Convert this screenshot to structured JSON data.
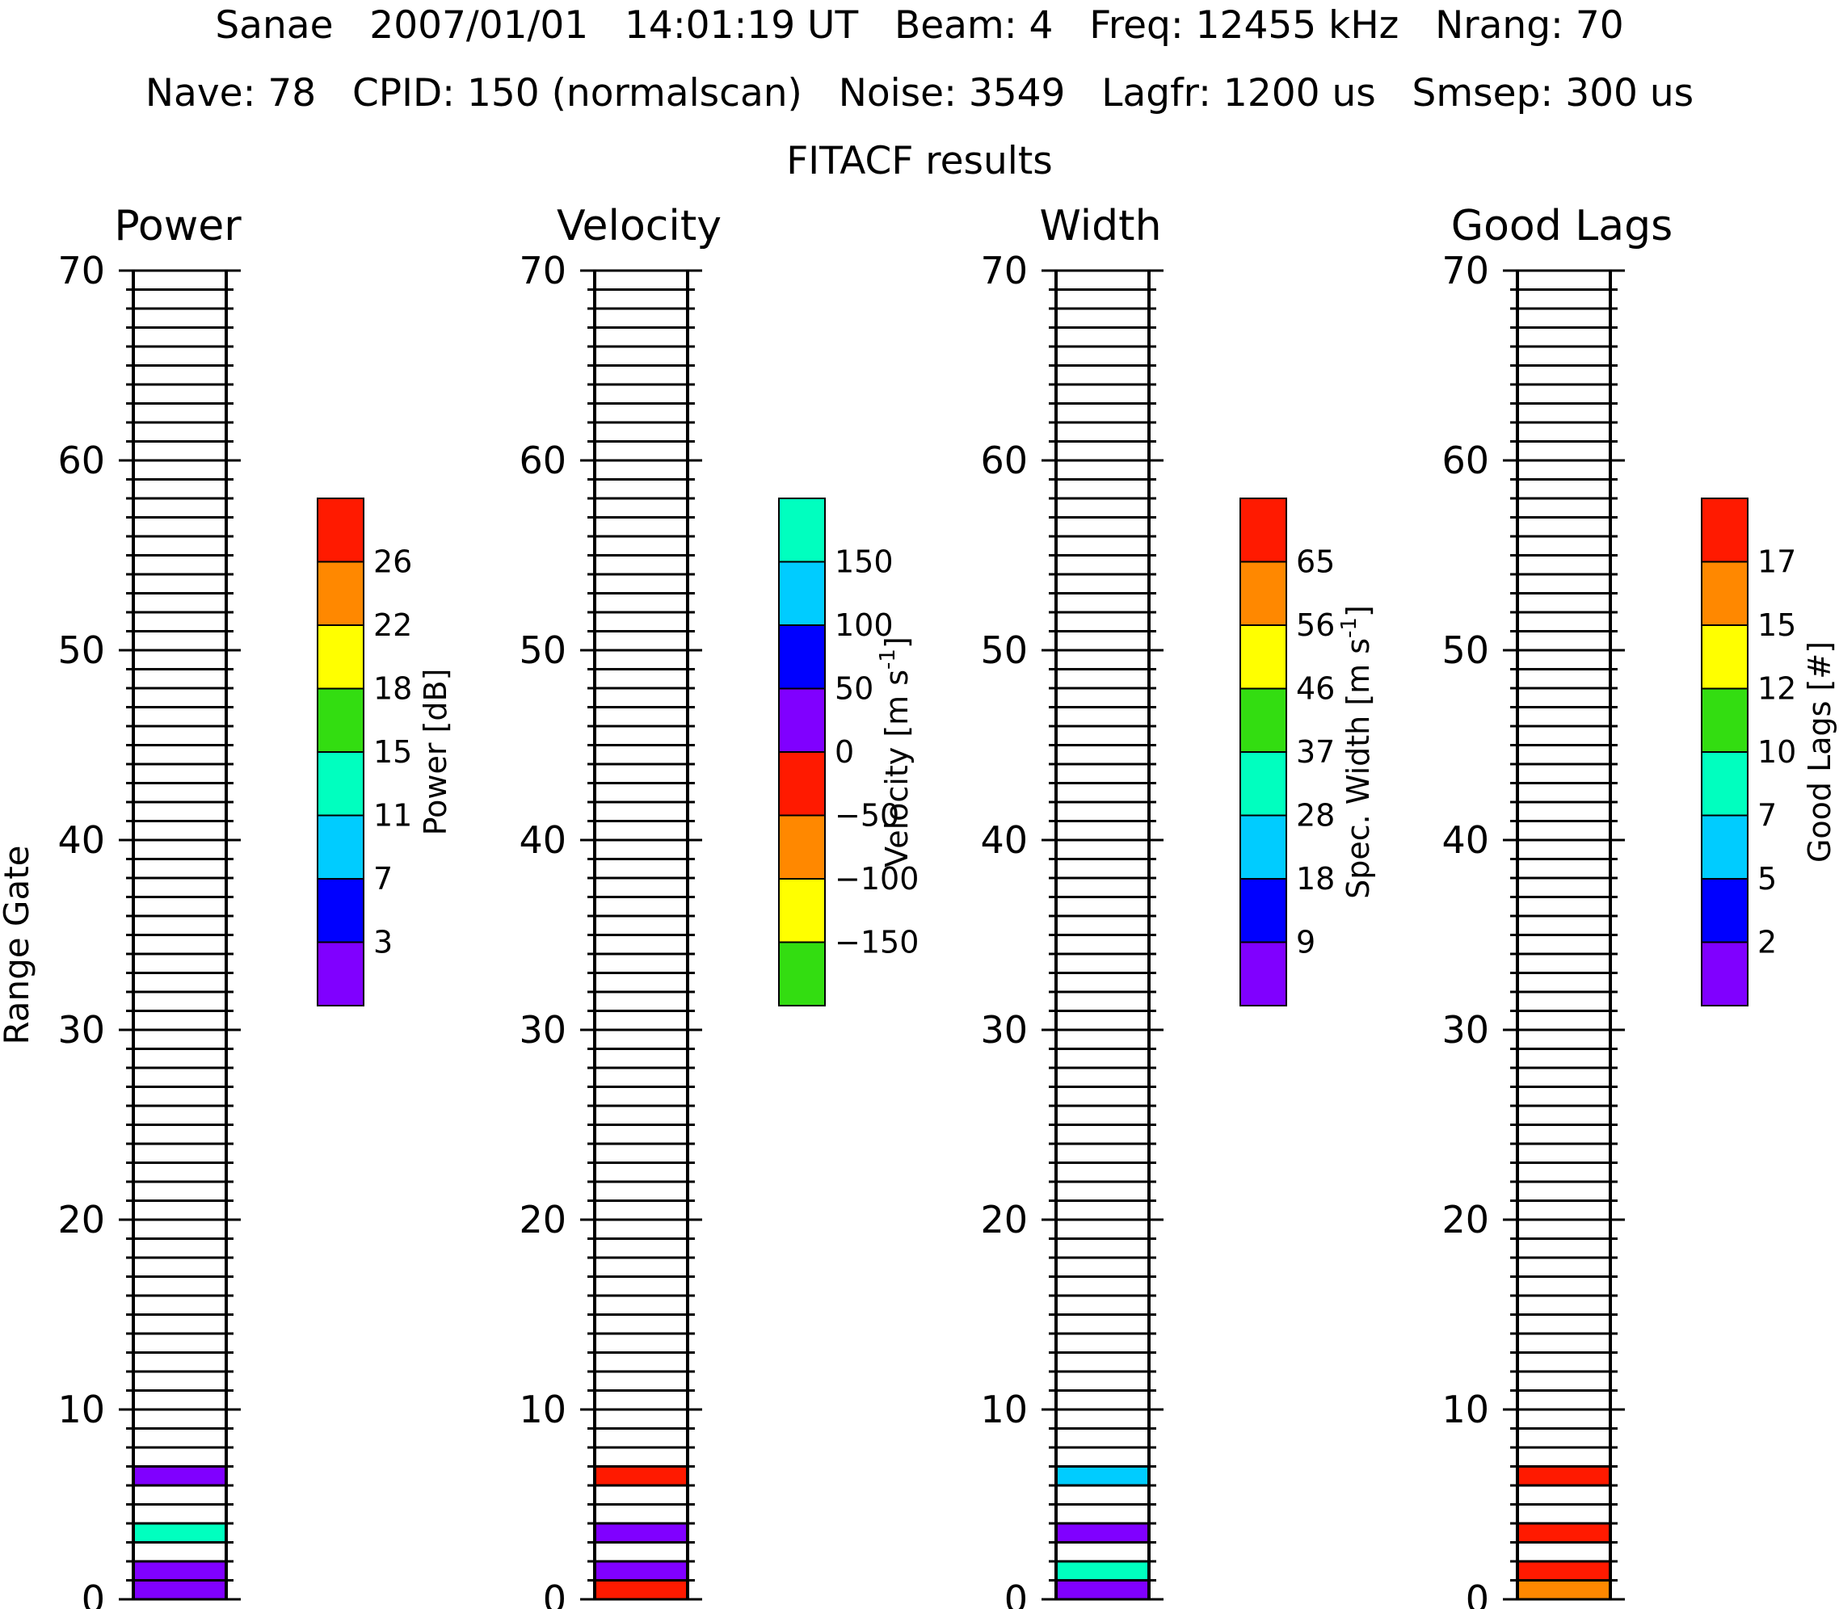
{
  "header": {
    "line1": "Sanae   2007/01/01   14:01:19 UT   Beam: 4   Freq: 12455 kHz   Nrang: 70",
    "line2": "Nave: 78   CPID: 150 (normalscan)   Noise: 3549   Lagfr: 1200 us   Smsep: 300 us",
    "line3": "FITACF results"
  },
  "chart_data": {
    "type": "heatmap",
    "ylabel": "Range Gate",
    "ylim": [
      0,
      70
    ],
    "yticks": [
      0,
      10,
      20,
      30,
      40,
      50,
      60,
      70
    ],
    "gates": 70,
    "panels": [
      {
        "title": "Power",
        "colorbar_label": "Power [dB]",
        "colorbar_label_parts": [
          "Power [dB]"
        ],
        "colorbar_ticks": [
          "3",
          "7",
          "11",
          "15",
          "18",
          "22",
          "26"
        ],
        "colorbar_colors": [
          "#8000ff",
          "#0000ff",
          "#00ccff",
          "#00ffbf",
          "#33dd11",
          "#ffff00",
          "#ff8800",
          "#ff1a00"
        ],
        "cells": [
          {
            "gate": 0,
            "bin": 0
          },
          {
            "gate": 1,
            "bin": 0
          },
          {
            "gate": 3,
            "bin": 3
          },
          {
            "gate": 6,
            "bin": 0
          }
        ]
      },
      {
        "title": "Velocity",
        "colorbar_label": "Velocity [m s-1]",
        "colorbar_label_parts": [
          "Velocity [m s",
          "-1",
          "]"
        ],
        "colorbar_ticks": [
          "−150",
          "−100",
          "−50",
          "0",
          "50",
          "100",
          "150"
        ],
        "colorbar_colors": [
          "#33dd11",
          "#ffff00",
          "#ff8800",
          "#ff1a00",
          "#8000ff",
          "#0000ff",
          "#00ccff",
          "#00ffbf"
        ],
        "cells": [
          {
            "gate": 0,
            "bin": 3
          },
          {
            "gate": 1,
            "bin": 4
          },
          {
            "gate": 3,
            "bin": 4
          },
          {
            "gate": 6,
            "bin": 3
          }
        ]
      },
      {
        "title": "Width",
        "colorbar_label": "Spec. Width [m s-1]",
        "colorbar_label_parts": [
          "Spec. Width [m s",
          "-1",
          "]"
        ],
        "colorbar_ticks": [
          "9",
          "18",
          "28",
          "37",
          "46",
          "56",
          "65"
        ],
        "colorbar_colors": [
          "#8000ff",
          "#0000ff",
          "#00ccff",
          "#00ffbf",
          "#33dd11",
          "#ffff00",
          "#ff8800",
          "#ff1a00"
        ],
        "cells": [
          {
            "gate": 0,
            "bin": 0
          },
          {
            "gate": 1,
            "bin": 3
          },
          {
            "gate": 3,
            "bin": 0
          },
          {
            "gate": 6,
            "bin": 2
          }
        ]
      },
      {
        "title": "Good Lags",
        "colorbar_label": "Good Lags [#]",
        "colorbar_label_parts": [
          "Good Lags [#]"
        ],
        "colorbar_ticks": [
          "2",
          "5",
          "7",
          "10",
          "12",
          "15",
          "17"
        ],
        "colorbar_colors": [
          "#8000ff",
          "#0000ff",
          "#00ccff",
          "#00ffbf",
          "#33dd11",
          "#ffff00",
          "#ff8800",
          "#ff1a00"
        ],
        "cells": [
          {
            "gate": 0,
            "bin": 6
          },
          {
            "gate": 1,
            "bin": 7
          },
          {
            "gate": 3,
            "bin": 7
          },
          {
            "gate": 6,
            "bin": 7
          }
        ]
      }
    ]
  }
}
